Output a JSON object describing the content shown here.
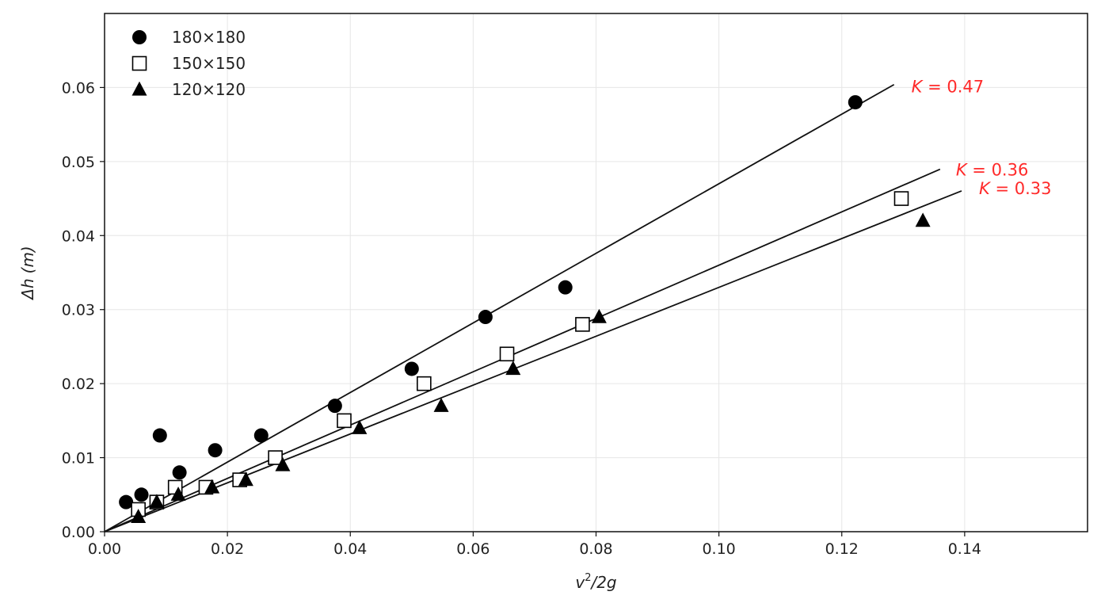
{
  "chart_data": {
    "type": "scatter",
    "xlabel_main": "v",
    "xlabel_sup": "2",
    "xlabel_rest": "/2g",
    "ylabel_main": "Δh",
    "ylabel_unit": "(m)",
    "xlim": [
      0,
      0.16
    ],
    "ylim": [
      0,
      0.07
    ],
    "x_ticks": [
      0.0,
      0.02,
      0.04,
      0.06,
      0.08,
      0.1,
      0.12,
      0.14
    ],
    "x_tick_labels": [
      "0.00",
      "0.02",
      "0.04",
      "0.06",
      "0.08",
      "0.10",
      "0.12",
      "0.14"
    ],
    "y_ticks": [
      0.0,
      0.01,
      0.02,
      0.03,
      0.04,
      0.05,
      0.06
    ],
    "y_tick_labels": [
      "0.00",
      "0.01",
      "0.02",
      "0.03",
      "0.04",
      "0.05",
      "0.06"
    ],
    "grid": true,
    "legend_position": "top-left",
    "series": [
      {
        "name": "180×180",
        "marker": "circle",
        "x": [
          0.0035,
          0.006,
          0.009,
          0.0122,
          0.018,
          0.0255,
          0.0375,
          0.05,
          0.062,
          0.075,
          0.1222
        ],
        "y": [
          0.004,
          0.005,
          0.013,
          0.008,
          0.011,
          0.013,
          0.017,
          0.022,
          0.029,
          0.033,
          0.058
        ],
        "fit": {
          "label": "K = 0.47",
          "k_symbol": "K",
          "k_value": "0.47",
          "slope": 0.47,
          "x_end": 0.1285
        }
      },
      {
        "name": "150×150",
        "marker": "square",
        "x": [
          0.0055,
          0.0085,
          0.0115,
          0.0165,
          0.022,
          0.0278,
          0.039,
          0.052,
          0.0655,
          0.0778,
          0.1297
        ],
        "y": [
          0.003,
          0.004,
          0.006,
          0.006,
          0.007,
          0.01,
          0.015,
          0.02,
          0.024,
          0.028,
          0.045
        ],
        "fit": {
          "label": "K = 0.36",
          "k_symbol": "K",
          "k_value": "0.36",
          "slope": 0.36,
          "x_end": 0.136
        }
      },
      {
        "name": "120×120",
        "marker": "triangle",
        "x": [
          0.0055,
          0.0085,
          0.012,
          0.0175,
          0.023,
          0.029,
          0.0415,
          0.0548,
          0.0665,
          0.0805,
          0.1332
        ],
        "y": [
          0.002,
          0.004,
          0.005,
          0.006,
          0.007,
          0.009,
          0.014,
          0.017,
          0.022,
          0.029,
          0.042
        ],
        "fit": {
          "label": "K = 0.33",
          "k_symbol": "K",
          "k_value": "0.33",
          "slope": 0.33,
          "x_end": 0.1395
        }
      }
    ]
  }
}
